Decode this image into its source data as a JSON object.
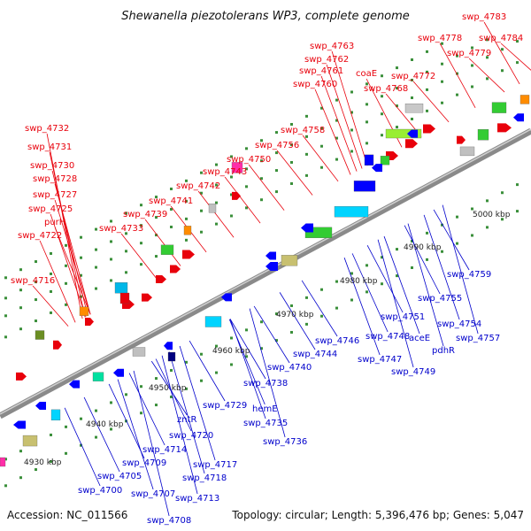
{
  "title": "Shewanella piezotolerans WP3, complete genome",
  "footer": {
    "accession": "Accession: NC_011566",
    "summary": "Topology: circular; Length: 5,396,476 bp; Genes: 5,047"
  },
  "colors": {
    "forward_label": "#e8000b",
    "reverse_label": "#0000cc",
    "backbone": "#8a8a8a"
  },
  "kbp_ticks": [
    "4930 kbp",
    "4940 kbp",
    "4950 kbp",
    "4960 kbp",
    "4970 kbp",
    "4980 kbp",
    "4990 kbp",
    "5000 kbp"
  ],
  "forward_genes": [
    "swp_4783",
    "swp_4778",
    "swp_4784",
    "swp_4779",
    "swp_4763",
    "swp_4762",
    "coaE",
    "swp_4761",
    "swp_4772",
    "swp_4760",
    "swp_4768",
    "swp_4732",
    "swp_4758",
    "swp_4731",
    "swp_4756",
    "swp_4730",
    "swp_4750",
    "swp_4728",
    "swp_4743",
    "swp_4742",
    "swp_4727",
    "swp_4741",
    "swp_4725",
    "swp_4739",
    "purH",
    "swp_4733",
    "swp_4722",
    "swp_4716"
  ],
  "reverse_genes": [
    "swp_4759",
    "swp_4755",
    "swp_4754",
    "swp_4751",
    "swp_4757",
    "swp_4748",
    "aceE",
    "swp_4746",
    "pdhR",
    "swp_4744",
    "swp_4747",
    "swp_4749",
    "swp_4740",
    "swp_4738",
    "hemE",
    "swp_4729",
    "zntR",
    "swp_4735",
    "swp_4736",
    "swp_4720",
    "swp_4714",
    "swp_4717",
    "swp_4709",
    "swp_4705",
    "swp_4718",
    "swp_4700",
    "swp_4707",
    "swp_4713",
    "swp_4708"
  ]
}
